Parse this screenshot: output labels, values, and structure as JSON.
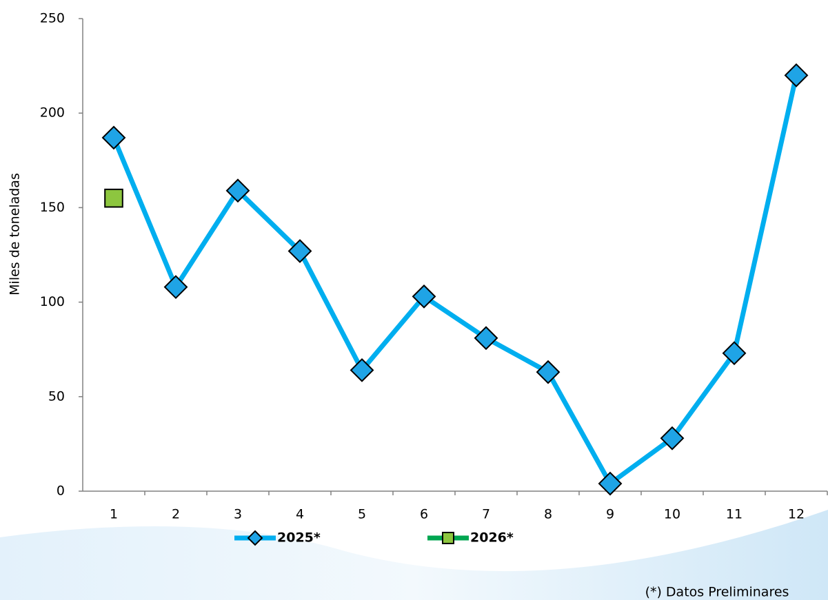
{
  "chart_data": {
    "type": "line",
    "y_label": "Miles de toneladas",
    "note": "(*) Datos Preliminares",
    "categories": [
      "1",
      "2",
      "3",
      "4",
      "5",
      "6",
      "7",
      "8",
      "9",
      "10",
      "11",
      "12"
    ],
    "series": [
      {
        "name": "2025*",
        "color": "#00aeef",
        "marker": "diamond",
        "marker_color": "#1fa4e6",
        "values": [
          187,
          108,
          159,
          127,
          64,
          103,
          81,
          63,
          4,
          28,
          73,
          220
        ]
      },
      {
        "name": "2026*",
        "color": "#00a651",
        "marker": "square",
        "marker_color": "#8dc63f",
        "values": [
          155,
          null,
          null,
          null,
          null,
          null,
          null,
          null,
          null,
          null,
          null,
          null
        ]
      }
    ],
    "ylim": [
      0,
      250
    ],
    "yticks": [
      0,
      50,
      100,
      150,
      200,
      250
    ],
    "grid": false,
    "legend": "bottom"
  }
}
